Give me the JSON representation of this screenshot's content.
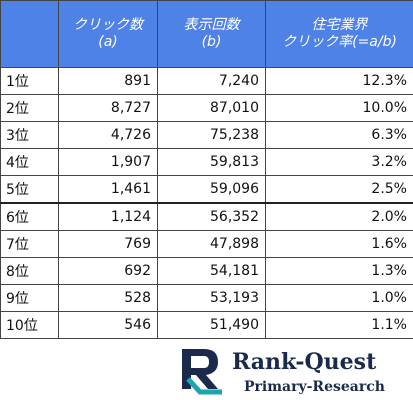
{
  "table": {
    "header": [
      [],
      [
        "クリック数",
        "(a)"
      ],
      [
        "表示回数",
        "(b)"
      ],
      [
        "住宅業界",
        "クリック率(=a/b)"
      ]
    ],
    "rows": [
      [
        "1位",
        "891",
        "7,240",
        "12.3%"
      ],
      [
        "2位",
        "8,727",
        "87,010",
        "10.0%"
      ],
      [
        "3位",
        "4,726",
        "75,238",
        "6.3%"
      ],
      [
        "4位",
        "1,907",
        "59,813",
        "3.2%"
      ],
      [
        "5位",
        "1,461",
        "59,096",
        "2.5%"
      ],
      [
        "6位",
        "1,124",
        "56,352",
        "2.0%"
      ],
      [
        "7位",
        "769",
        "47,898",
        "1.6%"
      ],
      [
        "8位",
        "692",
        "54,181",
        "1.3%"
      ],
      [
        "9位",
        "528",
        "53,193",
        "1.0%"
      ],
      [
        "10位",
        "546",
        "51,490",
        "1.1%"
      ]
    ]
  },
  "logo": {
    "title": "Rank-Quest",
    "subtitle": "Primary-Research"
  }
}
